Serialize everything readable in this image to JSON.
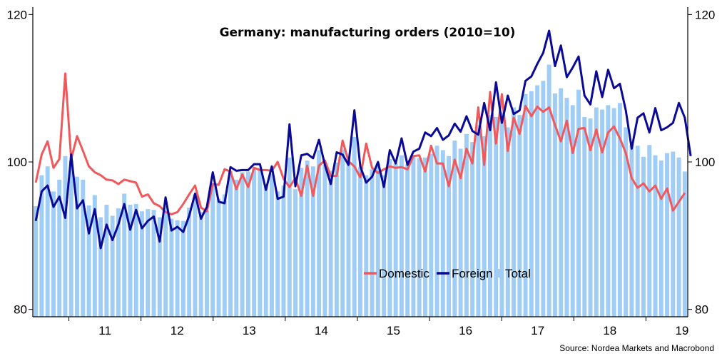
{
  "chart_data": {
    "type": "bar+line",
    "title": "Germany: manufacturing orders (2010=10)",
    "source": "Source: Nordea Markets and Macrobond",
    "x_tick_labels": [
      "11",
      "12",
      "13",
      "14",
      "15",
      "16",
      "17",
      "18",
      "19"
    ],
    "y_tick_labels_left": [
      "80",
      "100",
      "120"
    ],
    "y_tick_labels_right": [
      "80",
      "100",
      "120"
    ],
    "ylim": [
      79,
      121
    ],
    "x_start": 2010.5,
    "x_end": 2019.58,
    "legend_position": "bottom-right inside plot",
    "colors": {
      "domestic": "#f0585c",
      "foreign": "#0a0a96",
      "total": "#9fcdf6"
    },
    "series": [
      {
        "name": "Domestic",
        "type": "line",
        "values": [
          97.2,
          101.0,
          102.8,
          99.2,
          100.4,
          112.0,
          100.4,
          103.5,
          101.5,
          99.4,
          98.6,
          98.2,
          97.6,
          97.5,
          97.0,
          97.6,
          97.4,
          97.2,
          95.3,
          95.6,
          94.4,
          94.0,
          93.2,
          92.9,
          93.2,
          94.3,
          95.6,
          96.8,
          93.8,
          93.3,
          97.0,
          96.9,
          99.0,
          98.7,
          96.3,
          98.3,
          96.6,
          99.2,
          98.9,
          98.9,
          98.8,
          100.0,
          97.7,
          96.6,
          97.8,
          95.4,
          99.5,
          95.4,
          99.5,
          100.2,
          98.1,
          98.1,
          102.9,
          100.1,
          99.4,
          97.9,
          102.5,
          99.2,
          98.5,
          99.0,
          99.4,
          99.2,
          99.3,
          99.0,
          100.8,
          100.9,
          98.7,
          102.2,
          99.8,
          99.8,
          96.7,
          100.3,
          97.8,
          101.8,
          99.8,
          107.4,
          99.6,
          109.5,
          102.5,
          109.2,
          101.5,
          106.0,
          103.8,
          107.6,
          106.2,
          107.5,
          106.8,
          107.4,
          105.0,
          102.8,
          105.6,
          101.2,
          104.5,
          104.6,
          101.6,
          104.4,
          101.3,
          104.0,
          104.8,
          103.2,
          101.2,
          97.8,
          96.5,
          97.1,
          96.0,
          96.8,
          95.0,
          96.4,
          93.4,
          94.6,
          95.8
        ]
      },
      {
        "name": "Foreign",
        "type": "line",
        "values": [
          92.0,
          96.0,
          96.8,
          93.9,
          95.3,
          92.4,
          101.0,
          93.7,
          94.8,
          90.3,
          93.6,
          88.3,
          91.5,
          89.4,
          91.5,
          94.3,
          90.8,
          93.5,
          91.0,
          92.0,
          92.6,
          89.2,
          95.2,
          90.7,
          91.2,
          90.5,
          92.7,
          95.7,
          92.3,
          93.9,
          98.6,
          94.6,
          94.4,
          99.3,
          98.8,
          98.9,
          98.9,
          99.7,
          99.7,
          96.2,
          99.4,
          95.0,
          95.3,
          105.1,
          96.7,
          100.9,
          101.1,
          100.5,
          103.0,
          99.6,
          97.0,
          101.3,
          101.0,
          99.6,
          107.0,
          99.4,
          97.2,
          98.0,
          100.0,
          96.6,
          101.6,
          99.8,
          103.2,
          99.6,
          101.4,
          101.8,
          104.0,
          103.5,
          104.6,
          103.0,
          103.6,
          105.2,
          104.1,
          106.2,
          104.2,
          103.7,
          108.0,
          104.3,
          110.8,
          105.3,
          109.0,
          106.5,
          107.0,
          111.0,
          111.6,
          113.3,
          114.8,
          117.8,
          113.0,
          115.8,
          111.5,
          112.8,
          114.3,
          109.0,
          107.8,
          112.3,
          108.8,
          112.5,
          110.0,
          110.6,
          107.0,
          101.8,
          106.0,
          106.6,
          104.0,
          107.3,
          104.3,
          104.7,
          105.3,
          108.0,
          106.0,
          100.8
        ]
      },
      {
        "name": "Total",
        "type": "bar",
        "values": [
          94.0,
          98.2,
          99.4,
          96.0,
          97.6,
          100.8,
          100.2,
          98.0,
          97.6,
          94.1,
          95.5,
          92.5,
          94.2,
          92.7,
          93.7,
          95.7,
          94.2,
          94.3,
          93.3,
          93.6,
          93.5,
          92.5,
          94.0,
          92.3,
          92.1,
          92.0,
          93.8,
          95.6,
          93.2,
          93.4,
          97.1,
          95.0,
          95.6,
          98.8,
          97.6,
          98.6,
          98.7,
          99.2,
          99.2,
          97.0,
          98.4,
          96.0,
          96.8,
          100.6,
          96.3,
          99.2,
          100.2,
          99.4,
          101.6,
          99.6,
          98.8,
          99.9,
          101.8,
          100.1,
          103.4,
          99.3,
          98.2,
          99.0,
          99.8,
          98.2,
          100.4,
          99.8,
          100.9,
          99.7,
          100.8,
          100.5,
          100.6,
          101.1,
          102.2,
          101.6,
          100.8,
          102.9,
          101.8,
          103.8,
          102.7,
          105.0,
          103.5,
          106.4,
          106.1,
          106.7,
          104.7,
          107.4,
          106.4,
          109.2,
          109.6,
          110.4,
          111.0,
          113.2,
          109.3,
          110.0,
          108.7,
          107.7,
          109.8,
          106.1,
          105.9,
          107.4,
          107.1,
          107.7,
          107.3,
          108.0,
          104.7,
          102.3,
          102.2,
          100.7,
          102.3,
          100.9,
          100.2,
          101.2,
          101.4,
          100.6,
          98.7
        ]
      }
    ]
  }
}
